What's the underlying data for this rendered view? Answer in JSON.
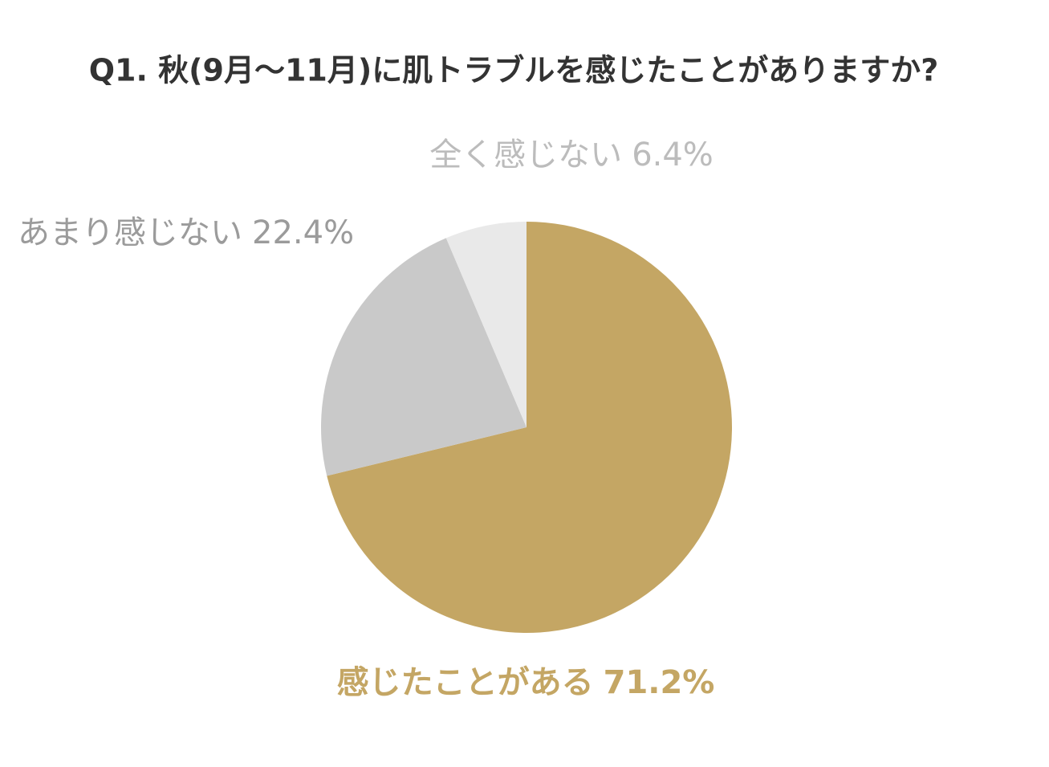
{
  "chart_data": {
    "type": "pie",
    "title": "Q1. 秋(9月〜11月)に肌トラブルを感じたことがありますか?",
    "categories": [
      "感じたことがある",
      "あまり感じない",
      "全く感じない"
    ],
    "values": [
      71.2,
      22.4,
      6.4
    ],
    "value_labels": [
      "71.2%",
      "22.4%",
      "6.4%"
    ],
    "colors": [
      "#c4a664",
      "#c9c9c9",
      "#e9e9e9"
    ],
    "label_colors": [
      "#c4a664",
      "#9b9b9b",
      "#bcbcbc"
    ]
  }
}
